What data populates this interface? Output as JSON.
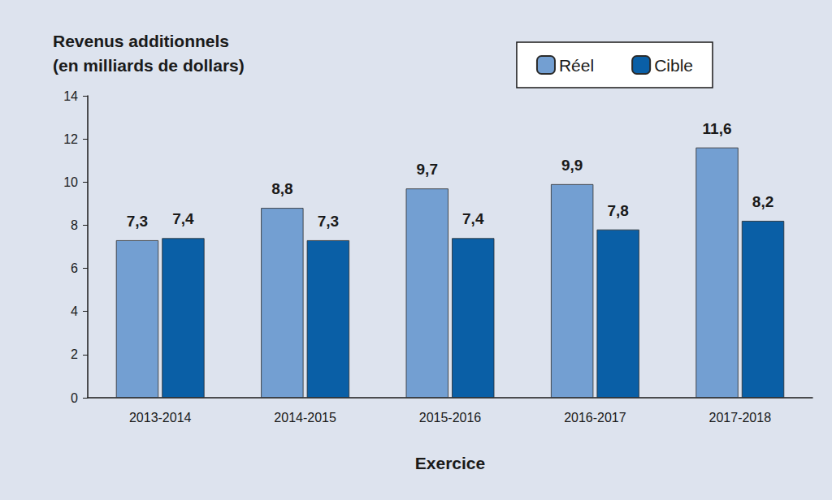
{
  "chart_data": {
    "type": "bar",
    "y_label": "Revenus additionnels\n(en milliards de dollars)",
    "x_label": "Exercice",
    "categories": [
      "2013-2014",
      "2014-2015",
      "2015-2016",
      "2016-2017",
      "2017-2018"
    ],
    "series": [
      {
        "name": "Réel",
        "color": "#739fd2",
        "values": [
          7.3,
          8.8,
          9.7,
          9.9,
          11.6
        ],
        "value_labels": [
          "7,3",
          "8,8",
          "9,7",
          "9,9",
          "11,6"
        ]
      },
      {
        "name": "Cible",
        "color": "#0a5fa6",
        "values": [
          7.4,
          7.3,
          7.4,
          7.8,
          8.2
        ],
        "value_labels": [
          "7,4",
          "7,3",
          "7,4",
          "7,8",
          "8,2"
        ]
      }
    ],
    "ylim": [
      0,
      14
    ],
    "yticks": [
      0,
      2,
      4,
      6,
      8,
      10,
      12,
      14
    ],
    "grid": false,
    "legend": "upper right",
    "data_labels": true
  }
}
